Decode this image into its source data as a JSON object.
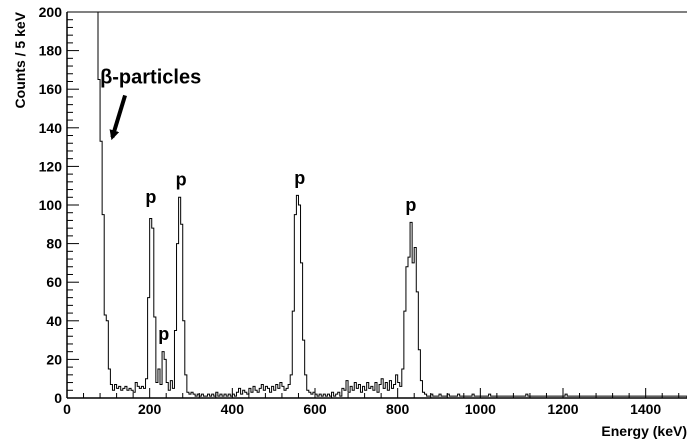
{
  "chart_data": {
    "type": "histogram-step",
    "xlabel": "Energy (keV)",
    "ylabel": "Counts / 5 keV",
    "xlim": [
      0,
      1500
    ],
    "ylim": [
      0,
      200
    ],
    "x_ticks": [
      0,
      200,
      400,
      600,
      800,
      1000,
      1200,
      1400
    ],
    "y_ticks": [
      0,
      20,
      40,
      60,
      80,
      100,
      120,
      140,
      160,
      180,
      200
    ],
    "bin_width_keV": 5,
    "grid": false,
    "legend": "none",
    "line_color": "#000000",
    "annotations": [
      {
        "text": "β-particles",
        "x": 80,
        "y": 163,
        "arrow_to": [
          100,
          133
        ],
        "size": "large"
      },
      {
        "text": "p",
        "x": 203,
        "y": 101
      },
      {
        "text": "p",
        "x": 234,
        "y": 30
      },
      {
        "text": "p",
        "x": 276,
        "y": 110
      },
      {
        "text": "p",
        "x": 563,
        "y": 111
      },
      {
        "text": "p",
        "x": 832,
        "y": 97
      }
    ],
    "points": [
      [
        60,
        200
      ],
      [
        65,
        200
      ],
      [
        70,
        200
      ],
      [
        75,
        165
      ],
      [
        80,
        133
      ],
      [
        85,
        95
      ],
      [
        90,
        43
      ],
      [
        95,
        40
      ],
      [
        100,
        15
      ],
      [
        105,
        7
      ],
      [
        110,
        4
      ],
      [
        115,
        7
      ],
      [
        120,
        5
      ],
      [
        125,
        6
      ],
      [
        130,
        4
      ],
      [
        135,
        5
      ],
      [
        140,
        6
      ],
      [
        145,
        4
      ],
      [
        150,
        5
      ],
      [
        155,
        4
      ],
      [
        160,
        3
      ],
      [
        165,
        8
      ],
      [
        170,
        6
      ],
      [
        175,
        5
      ],
      [
        180,
        6
      ],
      [
        185,
        5
      ],
      [
        190,
        10
      ],
      [
        195,
        52
      ],
      [
        200,
        93
      ],
      [
        205,
        88
      ],
      [
        210,
        42
      ],
      [
        215,
        8
      ],
      [
        220,
        15
      ],
      [
        225,
        7
      ],
      [
        230,
        24
      ],
      [
        235,
        20
      ],
      [
        240,
        8
      ],
      [
        245,
        4
      ],
      [
        250,
        9
      ],
      [
        255,
        5
      ],
      [
        260,
        35
      ],
      [
        265,
        80
      ],
      [
        270,
        104
      ],
      [
        275,
        90
      ],
      [
        280,
        40
      ],
      [
        285,
        12
      ],
      [
        290,
        3
      ],
      [
        295,
        2
      ],
      [
        300,
        3
      ],
      [
        305,
        2
      ],
      [
        310,
        1
      ],
      [
        315,
        2
      ],
      [
        320,
        1
      ],
      [
        325,
        2
      ],
      [
        330,
        1
      ],
      [
        335,
        1
      ],
      [
        340,
        2
      ],
      [
        345,
        1
      ],
      [
        350,
        2
      ],
      [
        355,
        1
      ],
      [
        360,
        3
      ],
      [
        365,
        1
      ],
      [
        370,
        2
      ],
      [
        375,
        1
      ],
      [
        380,
        2
      ],
      [
        385,
        1
      ],
      [
        390,
        2
      ],
      [
        395,
        1
      ],
      [
        400,
        2
      ],
      [
        405,
        1
      ],
      [
        410,
        3
      ],
      [
        415,
        5
      ],
      [
        420,
        2
      ],
      [
        425,
        4
      ],
      [
        430,
        3
      ],
      [
        435,
        2
      ],
      [
        440,
        5
      ],
      [
        445,
        3
      ],
      [
        450,
        6
      ],
      [
        455,
        4
      ],
      [
        460,
        3
      ],
      [
        465,
        5
      ],
      [
        470,
        7
      ],
      [
        475,
        4
      ],
      [
        480,
        6
      ],
      [
        485,
        5
      ],
      [
        490,
        3
      ],
      [
        495,
        6
      ],
      [
        500,
        4
      ],
      [
        505,
        7
      ],
      [
        510,
        5
      ],
      [
        515,
        8
      ],
      [
        520,
        6
      ],
      [
        525,
        4
      ],
      [
        530,
        5
      ],
      [
        535,
        7
      ],
      [
        540,
        12
      ],
      [
        545,
        45
      ],
      [
        550,
        95
      ],
      [
        555,
        105
      ],
      [
        560,
        100
      ],
      [
        565,
        70
      ],
      [
        570,
        30
      ],
      [
        575,
        12
      ],
      [
        580,
        4
      ],
      [
        585,
        3
      ],
      [
        590,
        2
      ],
      [
        595,
        3
      ],
      [
        600,
        2
      ],
      [
        605,
        1
      ],
      [
        610,
        2
      ],
      [
        615,
        1
      ],
      [
        620,
        2
      ],
      [
        625,
        1
      ],
      [
        630,
        2
      ],
      [
        635,
        1
      ],
      [
        640,
        3
      ],
      [
        645,
        1
      ],
      [
        650,
        2
      ],
      [
        655,
        3
      ],
      [
        660,
        1
      ],
      [
        665,
        5
      ],
      [
        670,
        4
      ],
      [
        675,
        9
      ],
      [
        680,
        3
      ],
      [
        685,
        6
      ],
      [
        690,
        4
      ],
      [
        695,
        8
      ],
      [
        700,
        5
      ],
      [
        705,
        7
      ],
      [
        710,
        3
      ],
      [
        715,
        6
      ],
      [
        720,
        4
      ],
      [
        725,
        8
      ],
      [
        730,
        5
      ],
      [
        735,
        6
      ],
      [
        740,
        4
      ],
      [
        745,
        8
      ],
      [
        750,
        3
      ],
      [
        755,
        7
      ],
      [
        760,
        10
      ],
      [
        765,
        5
      ],
      [
        770,
        8
      ],
      [
        775,
        4
      ],
      [
        780,
        9
      ],
      [
        785,
        5
      ],
      [
        790,
        7
      ],
      [
        795,
        12
      ],
      [
        800,
        8
      ],
      [
        805,
        6
      ],
      [
        810,
        15
      ],
      [
        815,
        45
      ],
      [
        820,
        68
      ],
      [
        825,
        73
      ],
      [
        830,
        91
      ],
      [
        835,
        70
      ],
      [
        840,
        78
      ],
      [
        845,
        55
      ],
      [
        850,
        25
      ],
      [
        855,
        9
      ],
      [
        860,
        3
      ],
      [
        865,
        2
      ],
      [
        870,
        1
      ],
      [
        875,
        1
      ],
      [
        880,
        2
      ],
      [
        885,
        1
      ],
      [
        890,
        1
      ],
      [
        895,
        1
      ],
      [
        900,
        2
      ],
      [
        905,
        1
      ],
      [
        910,
        1
      ],
      [
        915,
        1
      ],
      [
        920,
        2
      ],
      [
        925,
        1
      ],
      [
        930,
        1
      ],
      [
        935,
        1
      ],
      [
        940,
        1
      ],
      [
        945,
        2
      ],
      [
        950,
        1
      ],
      [
        955,
        1
      ],
      [
        960,
        1
      ],
      [
        965,
        1
      ],
      [
        970,
        1
      ],
      [
        975,
        1
      ],
      [
        980,
        2
      ],
      [
        985,
        1
      ],
      [
        990,
        1
      ],
      [
        995,
        1
      ],
      [
        1000,
        1
      ],
      [
        1005,
        1
      ],
      [
        1010,
        1
      ],
      [
        1015,
        1
      ],
      [
        1020,
        2
      ],
      [
        1025,
        1
      ],
      [
        1030,
        1
      ],
      [
        1035,
        1
      ],
      [
        1040,
        1
      ],
      [
        1045,
        1
      ],
      [
        1050,
        1
      ],
      [
        1055,
        1
      ],
      [
        1060,
        1
      ],
      [
        1065,
        1
      ],
      [
        1070,
        1
      ],
      [
        1075,
        1
      ],
      [
        1080,
        1
      ],
      [
        1085,
        1
      ],
      [
        1090,
        1
      ],
      [
        1095,
        1
      ],
      [
        1100,
        1
      ],
      [
        1105,
        1
      ],
      [
        1110,
        2
      ],
      [
        1115,
        1
      ],
      [
        1120,
        1
      ],
      [
        1125,
        1
      ],
      [
        1130,
        1
      ],
      [
        1135,
        1
      ],
      [
        1140,
        1
      ],
      [
        1145,
        1
      ],
      [
        1150,
        1
      ],
      [
        1155,
        1
      ],
      [
        1160,
        1
      ],
      [
        1165,
        1
      ],
      [
        1170,
        1
      ],
      [
        1175,
        1
      ],
      [
        1180,
        1
      ],
      [
        1185,
        1
      ],
      [
        1190,
        1
      ],
      [
        1195,
        1
      ],
      [
        1200,
        1
      ],
      [
        1205,
        2
      ],
      [
        1210,
        1
      ],
      [
        1215,
        1
      ],
      [
        1220,
        1
      ],
      [
        1225,
        1
      ],
      [
        1230,
        1
      ],
      [
        1235,
        1
      ],
      [
        1240,
        1
      ],
      [
        1245,
        1
      ],
      [
        1250,
        1
      ],
      [
        1255,
        1
      ],
      [
        1260,
        1
      ],
      [
        1265,
        1
      ],
      [
        1270,
        1
      ],
      [
        1275,
        1
      ],
      [
        1280,
        1
      ],
      [
        1285,
        1
      ],
      [
        1290,
        1
      ],
      [
        1295,
        1
      ],
      [
        1300,
        1
      ],
      [
        1305,
        1
      ],
      [
        1310,
        1
      ],
      [
        1315,
        1
      ],
      [
        1320,
        1
      ],
      [
        1325,
        1
      ],
      [
        1330,
        1
      ],
      [
        1335,
        1
      ],
      [
        1340,
        1
      ],
      [
        1345,
        1
      ],
      [
        1350,
        1
      ],
      [
        1355,
        1
      ],
      [
        1360,
        1
      ],
      [
        1365,
        1
      ],
      [
        1370,
        1
      ],
      [
        1375,
        1
      ],
      [
        1380,
        1
      ],
      [
        1385,
        1
      ],
      [
        1390,
        1
      ],
      [
        1395,
        1
      ],
      [
        1400,
        1
      ],
      [
        1405,
        1
      ],
      [
        1410,
        1
      ],
      [
        1415,
        1
      ],
      [
        1420,
        1
      ],
      [
        1425,
        1
      ],
      [
        1430,
        1
      ],
      [
        1435,
        1
      ],
      [
        1440,
        1
      ],
      [
        1445,
        1
      ],
      [
        1450,
        1
      ],
      [
        1455,
        1
      ],
      [
        1460,
        1
      ],
      [
        1465,
        1
      ],
      [
        1470,
        1
      ],
      [
        1475,
        1
      ],
      [
        1480,
        1
      ],
      [
        1485,
        1
      ],
      [
        1490,
        1
      ],
      [
        1495,
        1
      ]
    ]
  }
}
